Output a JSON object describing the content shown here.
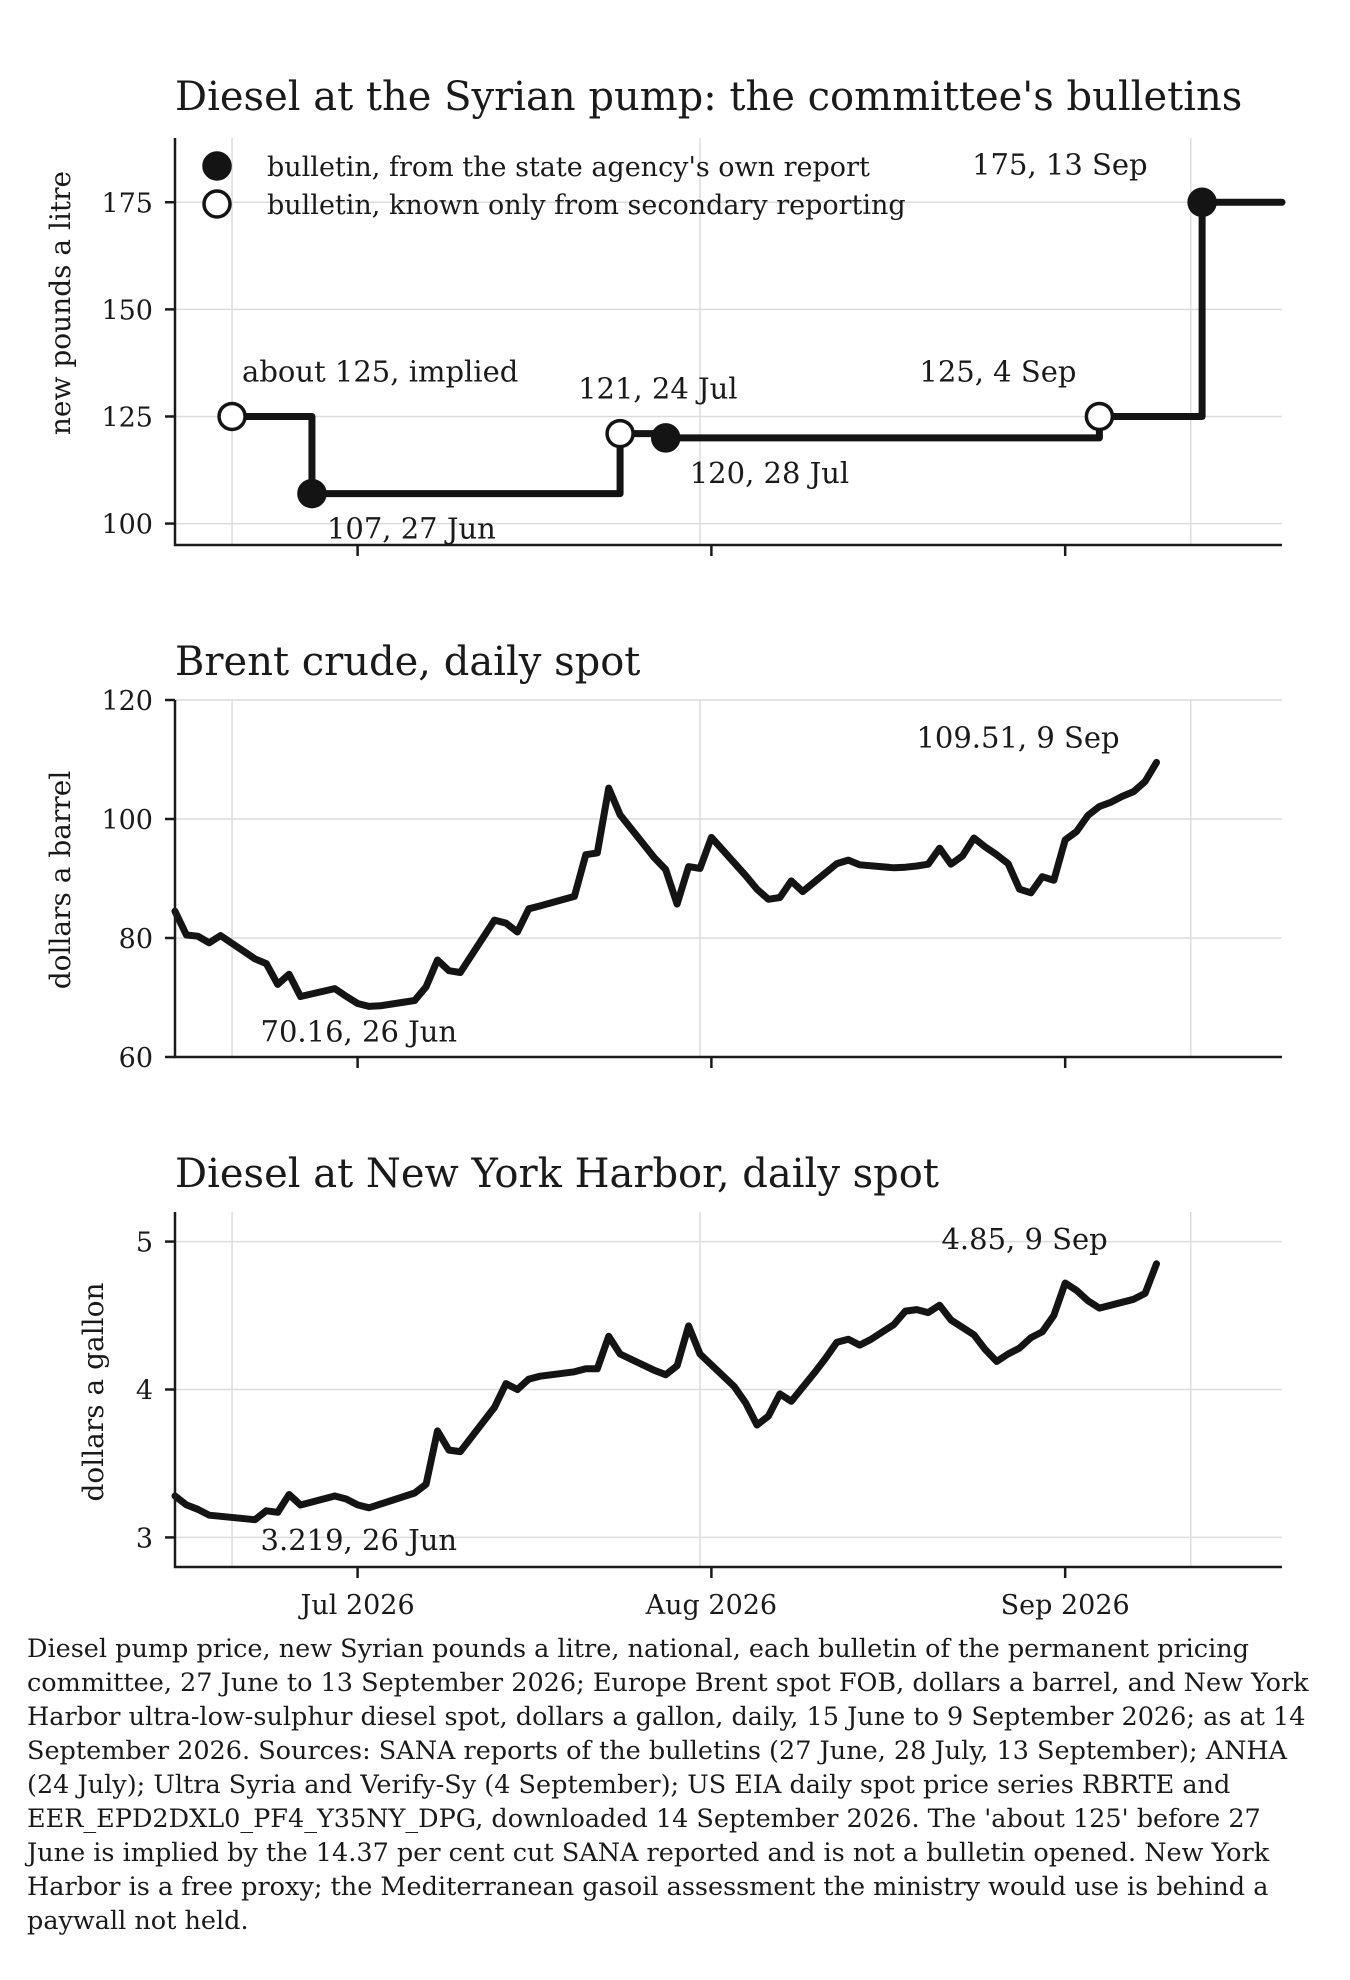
{
  "chart_data": [
    {
      "type": "line",
      "title": "Diesel at the Syrian pump: the committee's bulletins",
      "xlabel": "",
      "ylabel": "new pounds a litre",
      "ylim": [
        95,
        190
      ],
      "yticks": [
        100,
        125,
        150,
        175
      ],
      "xlim": [
        "2026-06-15",
        "2026-09-20"
      ],
      "grid": true,
      "step": true,
      "legend": {
        "position": "top-left",
        "entries": [
          {
            "marker": "filled",
            "label": "bulletin, from the state agency's own report"
          },
          {
            "marker": "open",
            "label": "bulletin, known only from secondary reporting"
          }
        ]
      },
      "points": [
        {
          "x": "2026-06-20",
          "y": 125,
          "marker": "open",
          "label": "about 125, implied"
        },
        {
          "x": "2026-06-27",
          "y": 107,
          "marker": "filled",
          "label": "107, 27 Jun"
        },
        {
          "x": "2026-07-24",
          "y": 121,
          "marker": "open",
          "label": "121, 24 Jul"
        },
        {
          "x": "2026-07-28",
          "y": 120,
          "marker": "filled",
          "label": "120, 28 Jul"
        },
        {
          "x": "2026-09-04",
          "y": 125,
          "marker": "open",
          "label": "125, 4 Sep"
        },
        {
          "x": "2026-09-13",
          "y": 175,
          "marker": "filled",
          "label": "175, 13 Sep"
        }
      ]
    },
    {
      "type": "line",
      "title": "Brent crude, daily spot",
      "xlabel": "",
      "ylabel": "dollars a barrel",
      "ylim": [
        60,
        120
      ],
      "yticks": [
        60,
        80,
        100,
        120
      ],
      "xlim": [
        "2026-06-15",
        "2026-09-20"
      ],
      "grid": true,
      "annotations": [
        {
          "x": "2026-06-26",
          "y": 70.16,
          "label": "70.16, 26 Jun"
        },
        {
          "x": "2026-09-09",
          "y": 109.51,
          "label": "109.51, 9 Sep"
        }
      ],
      "series": [
        {
          "values": [
            [
              "2026-06-15",
              84.5
            ],
            [
              "2026-06-16",
              80.5
            ],
            [
              "2026-06-17",
              80.3
            ],
            [
              "2026-06-18",
              79.2
            ],
            [
              "2026-06-19",
              80.4
            ],
            [
              "2026-06-22",
              76.5
            ],
            [
              "2026-06-23",
              75.7
            ],
            [
              "2026-06-24",
              72.2
            ],
            [
              "2026-06-25",
              73.9
            ],
            [
              "2026-06-26",
              70.16
            ],
            [
              "2026-06-29",
              71.5
            ],
            [
              "2026-06-30",
              70.2
            ],
            [
              "2026-07-01",
              69.0
            ],
            [
              "2026-07-02",
              68.5
            ],
            [
              "2026-07-03",
              68.6
            ],
            [
              "2026-07-06",
              69.5
            ],
            [
              "2026-07-07",
              71.8
            ],
            [
              "2026-07-08",
              76.3
            ],
            [
              "2026-07-09",
              74.5
            ],
            [
              "2026-07-10",
              74.2
            ],
            [
              "2026-07-13",
              83.0
            ],
            [
              "2026-07-14",
              82.5
            ],
            [
              "2026-07-15",
              81.0
            ],
            [
              "2026-07-16",
              84.9
            ],
            [
              "2026-07-17",
              85.4
            ],
            [
              "2026-07-20",
              87.0
            ],
            [
              "2026-07-21",
              94.0
            ],
            [
              "2026-07-22",
              94.3
            ],
            [
              "2026-07-23",
              105.2
            ],
            [
              "2026-07-24",
              100.7
            ],
            [
              "2026-07-27",
              93.5
            ],
            [
              "2026-07-28",
              91.5
            ],
            [
              "2026-07-29",
              85.7
            ],
            [
              "2026-07-30",
              92.0
            ],
            [
              "2026-07-31",
              91.7
            ],
            [
              "2026-08-01",
              96.9
            ],
            [
              "2026-08-04",
              90.5
            ],
            [
              "2026-08-05",
              88.2
            ],
            [
              "2026-08-06",
              86.5
            ],
            [
              "2026-08-07",
              86.8
            ],
            [
              "2026-08-08",
              89.6
            ],
            [
              "2026-08-09",
              87.8
            ],
            [
              "2026-08-12",
              92.5
            ],
            [
              "2026-08-13",
              93.1
            ],
            [
              "2026-08-14",
              92.3
            ],
            [
              "2026-08-17",
              91.8
            ],
            [
              "2026-08-18",
              91.9
            ],
            [
              "2026-08-19",
              92.1
            ],
            [
              "2026-08-20",
              92.4
            ],
            [
              "2026-08-21",
              95.1
            ],
            [
              "2026-08-22",
              92.4
            ],
            [
              "2026-08-23",
              93.8
            ],
            [
              "2026-08-24",
              96.8
            ],
            [
              "2026-08-25",
              95.3
            ],
            [
              "2026-08-26",
              94.0
            ],
            [
              "2026-08-27",
              92.5
            ],
            [
              "2026-08-28",
              88.2
            ],
            [
              "2026-08-29",
              87.6
            ],
            [
              "2026-08-30",
              90.3
            ],
            [
              "2026-08-31",
              89.7
            ],
            [
              "2026-09-01",
              96.5
            ],
            [
              "2026-09-02",
              97.9
            ],
            [
              "2026-09-03",
              100.6
            ],
            [
              "2026-09-04",
              102.1
            ],
            [
              "2026-09-05",
              102.8
            ],
            [
              "2026-09-06",
              103.8
            ],
            [
              "2026-09-07",
              104.6
            ],
            [
              "2026-09-08",
              106.3
            ],
            [
              "2026-09-09",
              109.51
            ]
          ]
        }
      ]
    },
    {
      "type": "line",
      "title": "Diesel at New York Harbor, daily spot",
      "xlabel": "",
      "ylabel": "dollars a gallon",
      "ylim": [
        2.8,
        5.2
      ],
      "yticks": [
        3,
        4,
        5
      ],
      "xlim": [
        "2026-06-15",
        "2026-09-20"
      ],
      "xticks": [
        "Jul 2026",
        "Aug 2026",
        "Sep 2026"
      ],
      "grid": true,
      "annotations": [
        {
          "x": "2026-06-26",
          "y": 3.219,
          "label": "3.219, 26 Jun"
        },
        {
          "x": "2026-09-09",
          "y": 4.85,
          "label": "4.85, 9 Sep"
        }
      ],
      "series": [
        {
          "values": [
            [
              "2026-06-15",
              3.28
            ],
            [
              "2026-06-16",
              3.22
            ],
            [
              "2026-06-17",
              3.19
            ],
            [
              "2026-06-18",
              3.15
            ],
            [
              "2026-06-22",
              3.12
            ],
            [
              "2026-06-23",
              3.18
            ],
            [
              "2026-06-24",
              3.17
            ],
            [
              "2026-06-25",
              3.29
            ],
            [
              "2026-06-26",
              3.219
            ],
            [
              "2026-06-29",
              3.28
            ],
            [
              "2026-06-30",
              3.26
            ],
            [
              "2026-07-01",
              3.22
            ],
            [
              "2026-07-02",
              3.2
            ],
            [
              "2026-07-06",
              3.3
            ],
            [
              "2026-07-07",
              3.36
            ],
            [
              "2026-07-08",
              3.72
            ],
            [
              "2026-07-09",
              3.59
            ],
            [
              "2026-07-10",
              3.58
            ],
            [
              "2026-07-13",
              3.88
            ],
            [
              "2026-07-14",
              4.04
            ],
            [
              "2026-07-15",
              4.0
            ],
            [
              "2026-07-16",
              4.07
            ],
            [
              "2026-07-17",
              4.09
            ],
            [
              "2026-07-20",
              4.12
            ],
            [
              "2026-07-21",
              4.14
            ],
            [
              "2026-07-22",
              4.14
            ],
            [
              "2026-07-23",
              4.36
            ],
            [
              "2026-07-24",
              4.24
            ],
            [
              "2026-07-27",
              4.13
            ],
            [
              "2026-07-28",
              4.1
            ],
            [
              "2026-07-29",
              4.16
            ],
            [
              "2026-07-30",
              4.43
            ],
            [
              "2026-07-31",
              4.24
            ],
            [
              "2026-08-03",
              4.02
            ],
            [
              "2026-08-04",
              3.91
            ],
            [
              "2026-08-05",
              3.76
            ],
            [
              "2026-08-06",
              3.82
            ],
            [
              "2026-08-07",
              3.97
            ],
            [
              "2026-08-08",
              3.92
            ],
            [
              "2026-08-10",
              4.11
            ],
            [
              "2026-08-11",
              4.21
            ],
            [
              "2026-08-12",
              4.32
            ],
            [
              "2026-08-13",
              4.34
            ],
            [
              "2026-08-14",
              4.3
            ],
            [
              "2026-08-15",
              4.34
            ],
            [
              "2026-08-17",
              4.44
            ],
            [
              "2026-08-18",
              4.53
            ],
            [
              "2026-08-19",
              4.54
            ],
            [
              "2026-08-20",
              4.52
            ],
            [
              "2026-08-21",
              4.57
            ],
            [
              "2026-08-22",
              4.47
            ],
            [
              "2026-08-24",
              4.37
            ],
            [
              "2026-08-25",
              4.27
            ],
            [
              "2026-08-26",
              4.19
            ],
            [
              "2026-08-27",
              4.24
            ],
            [
              "2026-08-28",
              4.28
            ],
            [
              "2026-08-29",
              4.35
            ],
            [
              "2026-08-30",
              4.39
            ],
            [
              "2026-08-31",
              4.5
            ],
            [
              "2026-09-01",
              4.72
            ],
            [
              "2026-09-02",
              4.67
            ],
            [
              "2026-09-03",
              4.6
            ],
            [
              "2026-09-04",
              4.55
            ],
            [
              "2026-09-05",
              4.57
            ],
            [
              "2026-09-07",
              4.61
            ],
            [
              "2026-09-08",
              4.65
            ],
            [
              "2026-09-09",
              4.85
            ]
          ]
        }
      ]
    }
  ],
  "caption": "Diesel pump price, new Syrian pounds a litre, national, each bulletin of the permanent pricing committee, 27 June to 13 September 2026; Europe Brent spot FOB, dollars a barrel, and New York Harbor ultra-low-sulphur diesel spot, dollars a gallon, daily, 15 June to 9 September 2026; as at 14 September 2026. Sources: SANA reports of the bulletins (27 June, 28 July, 13 September); ANHA (24 July); Ultra Syria and Verify-Sy (4 September); US EIA daily spot price series RBRTE and EER_EPD2DXL0_PF4_Y35NY_DPG, downloaded 14 September 2026. The 'about 125' before 27 June is implied by the 14.37 per cent cut SANA reported and is not a bulletin opened. New York Harbor is a free proxy; the Mediterranean gasoil assessment the ministry would use is behind a paywall not held."
}
